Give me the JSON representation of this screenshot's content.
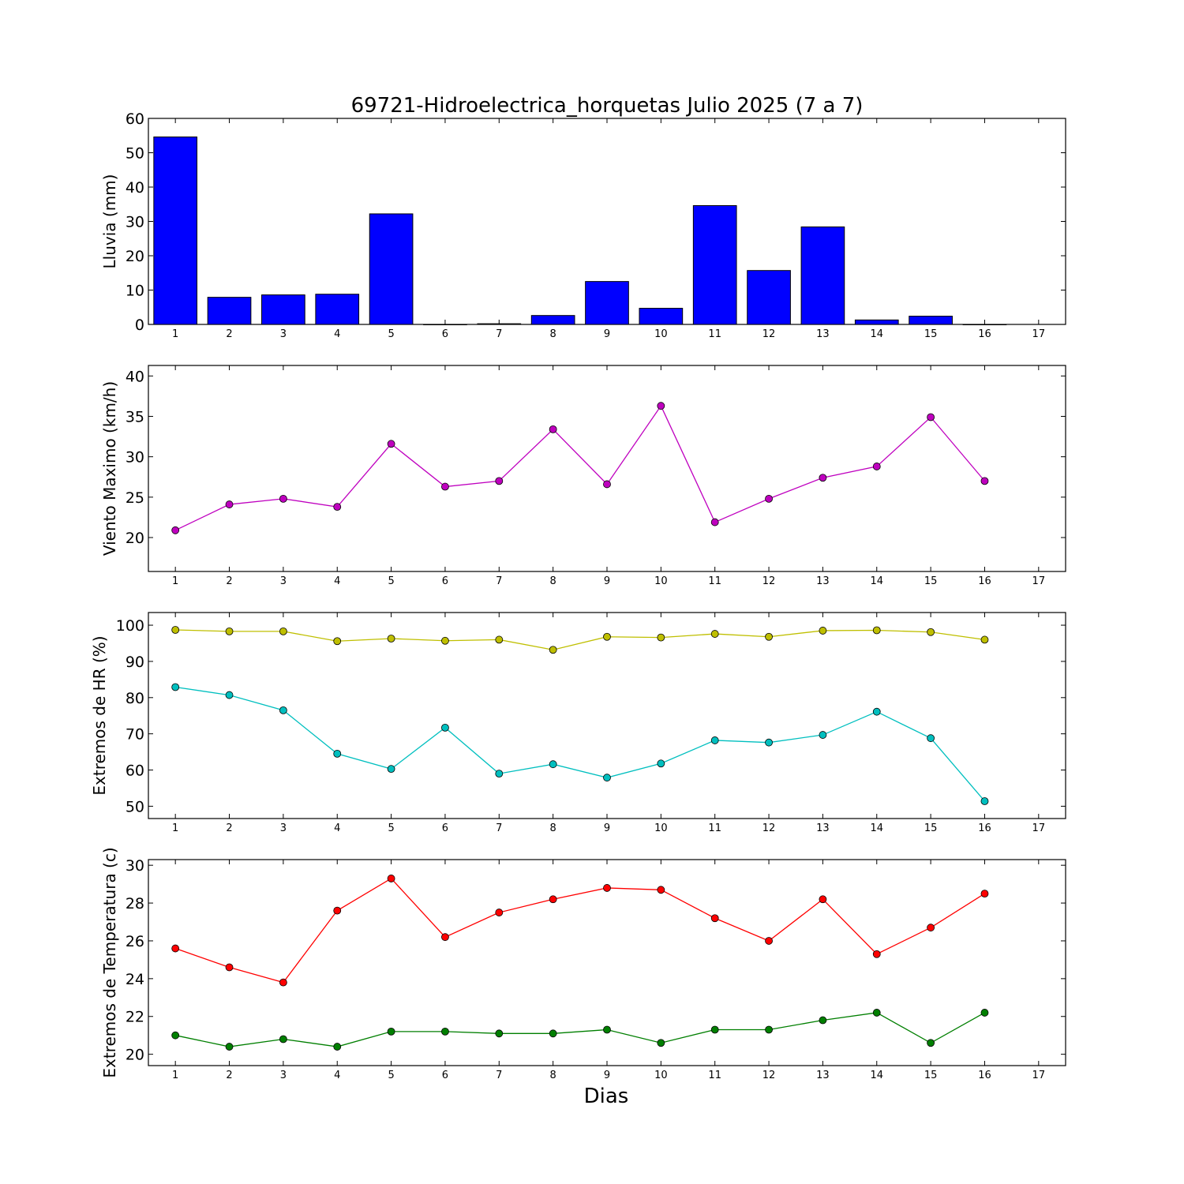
{
  "chart_data": [
    {
      "type": "bar",
      "title": "69721-Hidroelectrica_horquetas Julio 2025  (7 a 7)",
      "ylabel": "Lluvia (mm)",
      "xlabel": "",
      "ylim": [
        0,
        60
      ],
      "yticks": [
        0,
        10,
        20,
        30,
        40,
        50,
        60
      ],
      "xlim": [
        0.5,
        17.5
      ],
      "xticks": [
        1,
        2,
        3,
        4,
        5,
        6,
        7,
        8,
        9,
        10,
        11,
        12,
        13,
        14,
        15,
        16,
        17
      ],
      "grid": false,
      "categories": [
        1,
        2,
        3,
        4,
        5,
        6,
        7,
        8,
        9,
        10,
        11,
        12,
        13,
        14,
        15,
        16
      ],
      "series": [
        {
          "values": [
            54.6,
            7.9,
            8.6,
            8.8,
            32.2,
            0.0,
            0.2,
            2.6,
            12.5,
            4.7,
            34.6,
            15.7,
            28.4,
            1.3,
            2.4,
            0.0
          ],
          "color": "#0000ff"
        }
      ]
    },
    {
      "type": "line",
      "title": "",
      "ylabel": "Viento Maximo (km/h)",
      "xlabel": "",
      "ylim": [
        15.8,
        41.3
      ],
      "yticks": [
        20,
        25,
        30,
        35,
        40
      ],
      "xlim": [
        0.5,
        17.5
      ],
      "xticks": [
        1,
        2,
        3,
        4,
        5,
        6,
        7,
        8,
        9,
        10,
        11,
        12,
        13,
        14,
        15,
        16,
        17
      ],
      "grid": false,
      "x": [
        1,
        2,
        3,
        4,
        5,
        6,
        7,
        8,
        9,
        10,
        11,
        12,
        13,
        14,
        15,
        16
      ],
      "series": [
        {
          "values": [
            20.9,
            24.1,
            24.8,
            23.8,
            31.6,
            26.3,
            27.0,
            33.4,
            26.6,
            36.3,
            21.9,
            24.8,
            27.4,
            28.8,
            34.9,
            27.0
          ],
          "color": "#bf00bf"
        }
      ]
    },
    {
      "type": "line",
      "title": "",
      "ylabel": "Extremos de HR (%)",
      "xlabel": "",
      "ylim": [
        46.6,
        103.5
      ],
      "yticks": [
        50,
        60,
        70,
        80,
        90,
        100
      ],
      "xlim": [
        0.5,
        17.5
      ],
      "xticks": [
        1,
        2,
        3,
        4,
        5,
        6,
        7,
        8,
        9,
        10,
        11,
        12,
        13,
        14,
        15,
        16,
        17
      ],
      "grid": false,
      "x": [
        1,
        2,
        3,
        4,
        5,
        6,
        7,
        8,
        9,
        10,
        11,
        12,
        13,
        14,
        15,
        16
      ],
      "series": [
        {
          "values": [
            98.7,
            98.3,
            98.3,
            95.6,
            96.3,
            95.7,
            96.0,
            93.2,
            96.8,
            96.6,
            97.6,
            96.8,
            98.5,
            98.6,
            98.1,
            96.0
          ],
          "color": "#bfbf00"
        },
        {
          "values": [
            82.9,
            80.7,
            76.5,
            64.5,
            60.3,
            71.7,
            59.0,
            61.6,
            57.9,
            61.8,
            68.2,
            67.6,
            69.7,
            76.1,
            68.8,
            51.4
          ],
          "color": "#00bfbf"
        }
      ]
    },
    {
      "type": "line",
      "title": "",
      "ylabel": "Extremos de Temperatura (c)",
      "xlabel": "Dias",
      "ylim": [
        19.4,
        30.3
      ],
      "yticks": [
        20,
        22,
        24,
        26,
        28,
        30
      ],
      "xlim": [
        0.5,
        17.5
      ],
      "xticks": [
        1,
        2,
        3,
        4,
        5,
        6,
        7,
        8,
        9,
        10,
        11,
        12,
        13,
        14,
        15,
        16,
        17
      ],
      "grid": false,
      "x": [
        1,
        2,
        3,
        4,
        5,
        6,
        7,
        8,
        9,
        10,
        11,
        12,
        13,
        14,
        15,
        16
      ],
      "series": [
        {
          "values": [
            25.6,
            24.6,
            23.8,
            27.6,
            29.3,
            26.2,
            27.5,
            28.2,
            28.8,
            28.7,
            27.2,
            26.0,
            28.2,
            25.3,
            26.7,
            28.5
          ],
          "color": "#ff0000"
        },
        {
          "values": [
            21.0,
            20.4,
            20.8,
            20.4,
            21.2,
            21.2,
            21.1,
            21.1,
            21.3,
            20.6,
            21.3,
            21.3,
            21.8,
            22.2,
            20.6,
            22.2
          ],
          "color": "#007f00"
        }
      ]
    }
  ]
}
